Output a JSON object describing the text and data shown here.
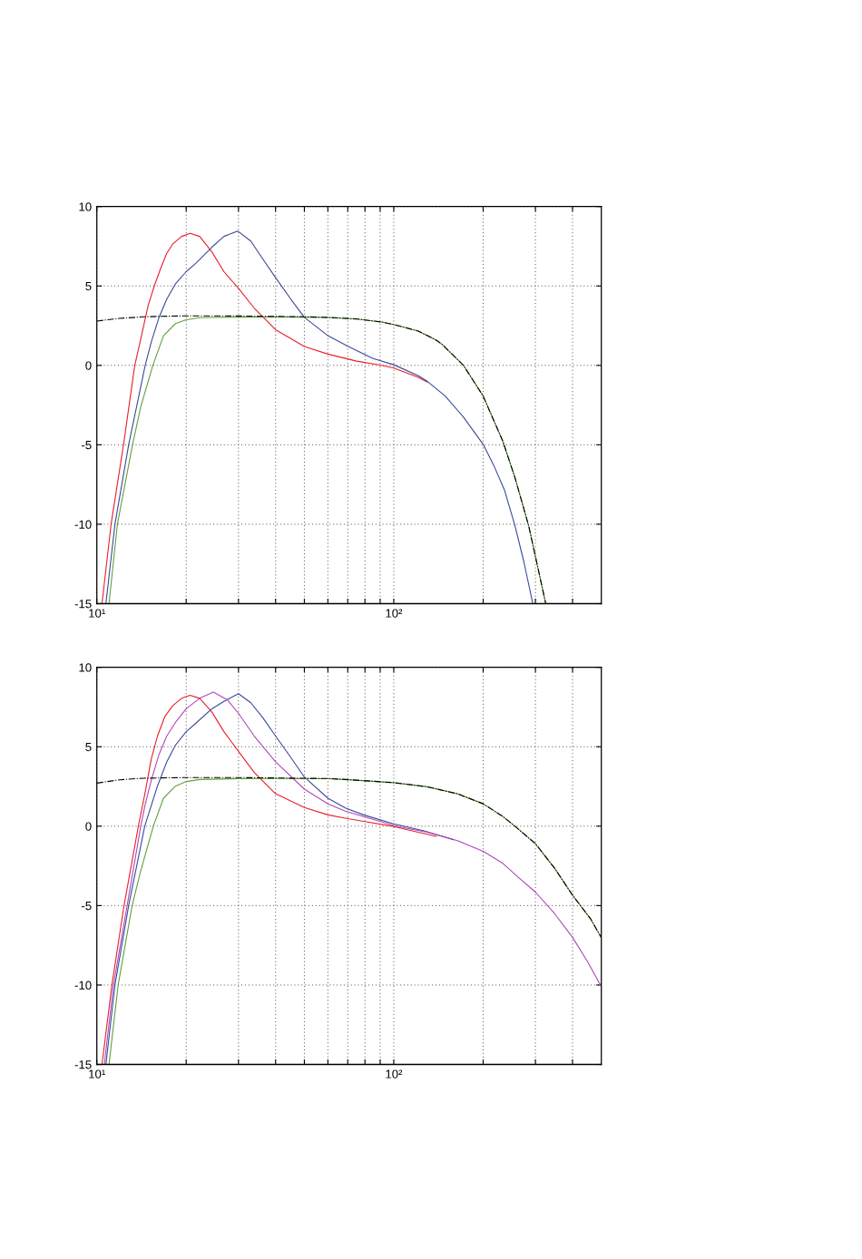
{
  "chart_data": [
    {
      "type": "line",
      "log": "x",
      "grid": true,
      "xlim": [
        10,
        500
      ],
      "ylim": [
        -15,
        10
      ],
      "xticks": [
        {
          "value": 10,
          "label": "10¹"
        },
        {
          "value": 20,
          "label": null
        },
        {
          "value": 30,
          "label": null
        },
        {
          "value": 40,
          "label": null
        },
        {
          "value": 50,
          "label": null
        },
        {
          "value": 60,
          "label": null
        },
        {
          "value": 70,
          "label": null
        },
        {
          "value": 80,
          "label": null
        },
        {
          "value": 90,
          "label": null
        },
        {
          "value": 100,
          "label": "10²"
        },
        {
          "value": 200,
          "label": null
        },
        {
          "value": 300,
          "label": null
        },
        {
          "value": 400,
          "label": null
        }
      ],
      "yticks": [
        -15,
        -10,
        -5,
        0,
        5,
        10
      ],
      "series": [
        {
          "color": "#e8202a",
          "line_style": "solid",
          "x": [
            10.41,
            11.17,
            12.3,
            13.42,
            14.06,
            14.9,
            15.7,
            16.4,
            17.2,
            18.0,
            19.3,
            20.6,
            22.2,
            24.4,
            26.8,
            30,
            33.9,
            40,
            50,
            60,
            75,
            91,
            100,
            121,
            129.6
          ],
          "values": [
            -15,
            -10,
            -5,
            0,
            1.67,
            3.79,
            5.13,
            6.1,
            7.06,
            7.63,
            8.12,
            8.31,
            8.12,
            7.15,
            5.9,
            4.85,
            3.6,
            2.25,
            1.19,
            0.71,
            0.27,
            0.0,
            -0.17,
            -0.75,
            -1.05
          ]
        },
        {
          "color": "#3a4a9a",
          "line_style": "solid",
          "x": [
            10.73,
            11.51,
            12.8,
            14.55,
            15.26,
            16.2,
            17.2,
            18.4,
            20,
            21.7,
            24.4,
            26.8,
            29.8,
            33.0,
            36.3,
            40,
            45,
            50,
            60,
            70.3,
            84.8,
            100,
            121,
            129.6,
            149.1,
            171.7,
            200,
            217.2,
            235.8,
            256,
            274,
            294
          ],
          "values": [
            -15,
            -10,
            -5,
            0,
            1.48,
            3.02,
            4.17,
            5.13,
            5.9,
            6.48,
            7.44,
            8.12,
            8.46,
            7.83,
            6.67,
            5.52,
            4.17,
            3.02,
            1.87,
            1.19,
            0.45,
            0.04,
            -0.65,
            -1.0,
            -1.93,
            -3.26,
            -4.97,
            -6.3,
            -7.83,
            -10.1,
            -12.33,
            -15
          ]
        },
        {
          "color": "#5fa03c",
          "line_style": "solid",
          "x": [
            10.99,
            11.73,
            13.19,
            14.06,
            15.44,
            16.77,
            18.4,
            20,
            22.2,
            24.1,
            30,
            40,
            50,
            60,
            75.4,
            91,
            100,
            121,
            139,
            145.7,
            171.7,
            200,
            233,
            256,
            284.7,
            325
          ],
          "values": [
            -15,
            -10,
            -5,
            -2.6,
            0,
            1.87,
            2.63,
            2.87,
            3.0,
            3.02,
            3.04,
            3.05,
            3.04,
            3.02,
            2.92,
            2.73,
            2.57,
            2.16,
            1.59,
            1.31,
            0.0,
            -1.93,
            -4.78,
            -7.07,
            -10.1,
            -15
          ]
        },
        {
          "color": "#000000",
          "line_style": "dashdot",
          "x": [
            10,
            11.93,
            14.4,
            20,
            30,
            50,
            60,
            75.4,
            91,
            100,
            121,
            139,
            145.7,
            171.7,
            200,
            233,
            256,
            284.7,
            325
          ],
          "values": [
            2.79,
            2.96,
            3.06,
            3.12,
            3.11,
            3.06,
            3.02,
            2.92,
            2.73,
            2.57,
            2.16,
            1.59,
            1.31,
            0.0,
            -1.93,
            -4.78,
            -7.07,
            -10.1,
            -15
          ]
        }
      ]
    },
    {
      "type": "line",
      "log": "x",
      "grid": true,
      "xlim": [
        10,
        500
      ],
      "ylim": [
        -15,
        10
      ],
      "xticks": [
        {
          "value": 10,
          "label": "10¹"
        },
        {
          "value": 20,
          "label": null
        },
        {
          "value": 30,
          "label": null
        },
        {
          "value": 40,
          "label": null
        },
        {
          "value": 50,
          "label": null
        },
        {
          "value": 60,
          "label": null
        },
        {
          "value": 70,
          "label": null
        },
        {
          "value": 80,
          "label": null
        },
        {
          "value": 90,
          "label": null
        },
        {
          "value": 100,
          "label": "10²"
        },
        {
          "value": 200,
          "label": null
        },
        {
          "value": 300,
          "label": null
        },
        {
          "value": 400,
          "label": null
        }
      ],
      "yticks": [
        -15,
        -10,
        -5,
        0,
        5,
        10
      ],
      "series": [
        {
          "color": "#e8202a",
          "line_style": "solid",
          "x": [
            10.41,
            11.24,
            12.35,
            13.8,
            14.55,
            15.26,
            16.0,
            16.96,
            18.0,
            19.3,
            20.6,
            22.2,
            24.4,
            26.8,
            30,
            33.9,
            40,
            50,
            60,
            68.7,
            79.1,
            100,
            139
          ],
          "values": [
            -15,
            -10,
            -5,
            0,
            2.14,
            4.24,
            5.67,
            6.91,
            7.58,
            8.05,
            8.24,
            8.05,
            7.19,
            5.95,
            4.71,
            3.38,
            2.04,
            1.18,
            0.71,
            0.5,
            0.3,
            -0.02,
            -0.65
          ]
        },
        {
          "color": "#3a4a9a",
          "line_style": "solid",
          "x": [
            10.73,
            11.51,
            12.8,
            14.5,
            16.0,
            17.2,
            18.4,
            20,
            21.7,
            24.4,
            26.8,
            30,
            33.0,
            36.3,
            40,
            45,
            50,
            60,
            68.7,
            79.1,
            100,
            126.5,
            159
          ],
          "values": [
            -15,
            -10,
            -5,
            0,
            2.52,
            4.05,
            5.1,
            5.95,
            6.53,
            7.39,
            7.86,
            8.34,
            7.77,
            6.81,
            5.67,
            4.33,
            3.09,
            1.76,
            1.15,
            0.71,
            0.15,
            -0.3,
            -0.85
          ]
        },
        {
          "color": "#b048b8",
          "line_style": "solid",
          "x": [
            10.6,
            11.38,
            12.65,
            14.06,
            14.55,
            15.26,
            16.2,
            17.2,
            18.4,
            20,
            22.2,
            24.7,
            27.5,
            30,
            33.9,
            40,
            50,
            60,
            68.7,
            79.1,
            100,
            110,
            129.6,
            163.8,
            200,
            233,
            262,
            300,
            347.5,
            400,
            450,
            500
          ],
          "values": [
            -15,
            -10,
            -5,
            0,
            1.37,
            2.9,
            4.52,
            5.67,
            6.53,
            7.39,
            8.05,
            8.44,
            7.96,
            7.1,
            5.67,
            4.05,
            2.33,
            1.4,
            0.95,
            0.6,
            0.05,
            -0.12,
            -0.38,
            -0.91,
            -1.58,
            -2.34,
            -3.2,
            -4.15,
            -5.49,
            -7.0,
            -8.55,
            -10.1
          ]
        },
        {
          "color": "#5fa03c",
          "line_style": "solid",
          "x": [
            10.99,
            11.8,
            13.15,
            14.06,
            15.5,
            16.77,
            18.4,
            20,
            22.2,
            30,
            40,
            60,
            68.7,
            100,
            129.6,
            163.8,
            200,
            233,
            256,
            300,
            347.5,
            400,
            461,
            500
          ],
          "values": [
            -15,
            -10,
            -5,
            -2.8,
            0,
            1.76,
            2.52,
            2.81,
            2.94,
            2.99,
            3.0,
            2.99,
            2.94,
            2.74,
            2.48,
            2.04,
            1.41,
            0.61,
            0.0,
            -1.1,
            -2.63,
            -4.34,
            -5.86,
            -7.02
          ]
        },
        {
          "color": "#000000",
          "line_style": "dashdot",
          "x": [
            10,
            11.93,
            14.4,
            20,
            30,
            60,
            68.7,
            100,
            129.6,
            163.8,
            200,
            233,
            256,
            300,
            347.5,
            400,
            461,
            500
          ],
          "values": [
            2.71,
            2.92,
            3.02,
            3.06,
            3.06,
            3.0,
            2.94,
            2.74,
            2.48,
            2.04,
            1.41,
            0.61,
            0.0,
            -1.1,
            -2.63,
            -4.34,
            -5.86,
            -7.02
          ]
        }
      ]
    }
  ]
}
